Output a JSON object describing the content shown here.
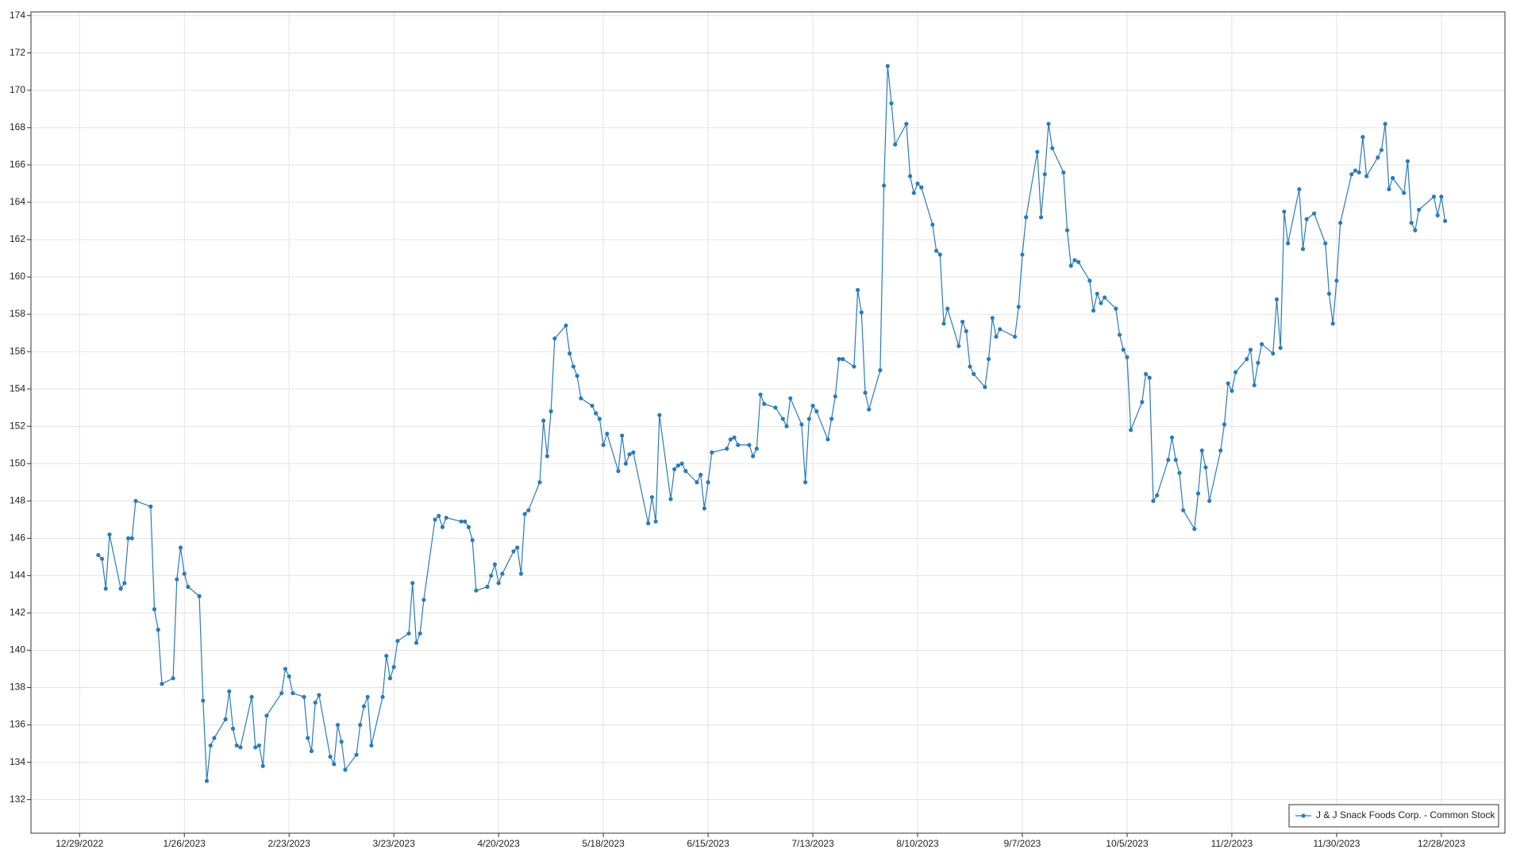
{
  "chart_data": {
    "type": "line",
    "x": [
      "1/3/2023",
      "1/4/2023",
      "1/5/2023",
      "1/6/2023",
      "1/9/2023",
      "1/10/2023",
      "1/11/2023",
      "1/12/2023",
      "1/13/2023",
      "1/17/2023",
      "1/18/2023",
      "1/19/2023",
      "1/20/2023",
      "1/23/2023",
      "1/24/2023",
      "1/25/2023",
      "1/26/2023",
      "1/27/2023",
      "1/30/2023",
      "1/31/2023",
      "2/1/2023",
      "2/2/2023",
      "2/3/2023",
      "2/6/2023",
      "2/7/2023",
      "2/8/2023",
      "2/9/2023",
      "2/10/2023",
      "2/13/2023",
      "2/14/2023",
      "2/15/2023",
      "2/16/2023",
      "2/17/2023",
      "2/21/2023",
      "2/22/2023",
      "2/23/2023",
      "2/24/2023",
      "2/27/2023",
      "2/28/2023",
      "3/1/2023",
      "3/2/2023",
      "3/3/2023",
      "3/6/2023",
      "3/7/2023",
      "3/8/2023",
      "3/9/2023",
      "3/10/2023",
      "3/13/2023",
      "3/14/2023",
      "3/15/2023",
      "3/16/2023",
      "3/17/2023",
      "3/20/2023",
      "3/21/2023",
      "3/22/2023",
      "3/23/2023",
      "3/24/2023",
      "3/27/2023",
      "3/28/2023",
      "3/29/2023",
      "3/30/2023",
      "3/31/2023",
      "4/3/2023",
      "4/4/2023",
      "4/5/2023",
      "4/6/2023",
      "4/10/2023",
      "4/11/2023",
      "4/12/2023",
      "4/13/2023",
      "4/14/2023",
      "4/17/2023",
      "4/18/2023",
      "4/19/2023",
      "4/20/2023",
      "4/21/2023",
      "4/24/2023",
      "4/25/2023",
      "4/26/2023",
      "4/27/2023",
      "4/28/2023",
      "5/1/2023",
      "5/2/2023",
      "5/3/2023",
      "5/4/2023",
      "5/5/2023",
      "5/8/2023",
      "5/9/2023",
      "5/10/2023",
      "5/11/2023",
      "5/12/2023",
      "5/15/2023",
      "5/16/2023",
      "5/17/2023",
      "5/18/2023",
      "5/19/2023",
      "5/22/2023",
      "5/23/2023",
      "5/24/2023",
      "5/25/2023",
      "5/26/2023",
      "5/30/2023",
      "5/31/2023",
      "6/1/2023",
      "6/2/2023",
      "6/5/2023",
      "6/6/2023",
      "6/7/2023",
      "6/8/2023",
      "6/9/2023",
      "6/12/2023",
      "6/13/2023",
      "6/14/2023",
      "6/15/2023",
      "6/16/2023",
      "6/20/2023",
      "6/21/2023",
      "6/22/2023",
      "6/23/2023",
      "6/26/2023",
      "6/27/2023",
      "6/28/2023",
      "6/29/2023",
      "6/30/2023",
      "7/3/2023",
      "7/5/2023",
      "7/6/2023",
      "7/7/2023",
      "7/10/2023",
      "7/11/2023",
      "7/12/2023",
      "7/13/2023",
      "7/14/2023",
      "7/17/2023",
      "7/18/2023",
      "7/19/2023",
      "7/20/2023",
      "7/21/2023",
      "7/24/2023",
      "7/25/2023",
      "7/26/2023",
      "7/27/2023",
      "7/28/2023",
      "7/31/2023",
      "8/1/2023",
      "8/2/2023",
      "8/3/2023",
      "8/4/2023",
      "8/7/2023",
      "8/8/2023",
      "8/9/2023",
      "8/10/2023",
      "8/11/2023",
      "8/14/2023",
      "8/15/2023",
      "8/16/2023",
      "8/17/2023",
      "8/18/2023",
      "8/21/2023",
      "8/22/2023",
      "8/23/2023",
      "8/24/2023",
      "8/25/2023",
      "8/28/2023",
      "8/29/2023",
      "8/30/2023",
      "8/31/2023",
      "9/1/2023",
      "9/5/2023",
      "9/6/2023",
      "9/7/2023",
      "9/8/2023",
      "9/11/2023",
      "9/12/2023",
      "9/13/2023",
      "9/14/2023",
      "9/15/2023",
      "9/18/2023",
      "9/19/2023",
      "9/20/2023",
      "9/21/2023",
      "9/22/2023",
      "9/25/2023",
      "9/26/2023",
      "9/27/2023",
      "9/28/2023",
      "9/29/2023",
      "10/2/2023",
      "10/3/2023",
      "10/4/2023",
      "10/5/2023",
      "10/6/2023",
      "10/9/2023",
      "10/10/2023",
      "10/11/2023",
      "10/12/2023",
      "10/13/2023",
      "10/16/2023",
      "10/17/2023",
      "10/18/2023",
      "10/19/2023",
      "10/20/2023",
      "10/23/2023",
      "10/24/2023",
      "10/25/2023",
      "10/26/2023",
      "10/27/2023",
      "10/30/2023",
      "10/31/2023",
      "11/1/2023",
      "11/2/2023",
      "11/3/2023",
      "11/6/2023",
      "11/7/2023",
      "11/8/2023",
      "11/9/2023",
      "11/10/2023",
      "11/13/2023",
      "11/14/2023",
      "11/15/2023",
      "11/16/2023",
      "11/17/2023",
      "11/20/2023",
      "11/21/2023",
      "11/22/2023",
      "11/24/2023",
      "11/27/2023",
      "11/28/2023",
      "11/29/2023",
      "11/30/2023",
      "12/1/2023",
      "12/4/2023",
      "12/5/2023",
      "12/6/2023",
      "12/7/2023",
      "12/8/2023",
      "12/11/2023",
      "12/12/2023",
      "12/13/2023",
      "12/14/2023",
      "12/15/2023",
      "12/18/2023",
      "12/19/2023",
      "12/20/2023",
      "12/21/2023",
      "12/22/2023",
      "12/26/2023",
      "12/27/2023",
      "12/28/2023",
      "12/29/2023"
    ],
    "series": [
      {
        "name": "J & J Snack Foods Corp. - Common Stock",
        "color": "#2b7bb9",
        "values": [
          145.1,
          144.9,
          143.3,
          146.2,
          143.3,
          143.6,
          146.0,
          146.0,
          148.0,
          147.7,
          142.2,
          141.1,
          138.2,
          138.5,
          143.8,
          145.5,
          144.1,
          143.4,
          142.9,
          137.3,
          133.0,
          134.9,
          135.3,
          136.3,
          137.8,
          135.8,
          134.9,
          134.8,
          137.5,
          134.8,
          134.9,
          133.8,
          136.5,
          137.7,
          139.0,
          138.6,
          137.7,
          137.5,
          135.3,
          134.6,
          137.2,
          137.6,
          134.3,
          133.9,
          136.0,
          135.1,
          133.6,
          134.4,
          136.0,
          137.0,
          137.5,
          134.9,
          137.5,
          139.7,
          138.5,
          139.1,
          140.5,
          140.9,
          143.6,
          140.4,
          140.9,
          142.7,
          147.0,
          147.2,
          146.6,
          147.1,
          146.9,
          146.9,
          146.6,
          145.9,
          143.2,
          143.4,
          144.0,
          144.6,
          143.6,
          144.1,
          145.3,
          145.5,
          144.1,
          147.3,
          147.5,
          149.0,
          152.3,
          150.4,
          152.8,
          156.7,
          157.4,
          155.9,
          155.2,
          154.7,
          153.5,
          153.1,
          152.7,
          152.4,
          151.0,
          151.6,
          149.6,
          151.5,
          150.0,
          150.5,
          150.6,
          146.8,
          148.2,
          146.9,
          152.6,
          148.1,
          149.7,
          149.9,
          150.0,
          149.6,
          149.0,
          149.4,
          147.6,
          149.0,
          150.6,
          150.8,
          151.3,
          151.4,
          151.0,
          151.0,
          150.4,
          150.8,
          153.7,
          153.2,
          153.0,
          152.4,
          152.0,
          153.5,
          152.1,
          149.0,
          152.4,
          153.1,
          152.8,
          151.3,
          152.4,
          153.6,
          155.6,
          155.6,
          155.2,
          159.3,
          158.1,
          153.8,
          152.9,
          155.0,
          164.9,
          171.3,
          169.3,
          167.1,
          168.2,
          165.4,
          164.5,
          165.0,
          164.8,
          162.8,
          161.4,
          161.2,
          157.5,
          158.3,
          156.3,
          157.6,
          157.1,
          155.2,
          154.8,
          154.1,
          155.6,
          157.8,
          156.8,
          157.2,
          156.8,
          158.4,
          161.2,
          163.2,
          166.7,
          163.2,
          165.5,
          168.2,
          166.9,
          165.6,
          162.5,
          160.6,
          160.9,
          160.8,
          159.8,
          158.2,
          159.1,
          158.6,
          158.9,
          158.3,
          156.9,
          156.1,
          155.7,
          151.8,
          153.3,
          154.8,
          154.6,
          148.0,
          148.3,
          150.2,
          151.4,
          150.2,
          149.5,
          147.5,
          146.5,
          148.4,
          150.7,
          149.8,
          148.0,
          150.7,
          152.1,
          154.3,
          153.9,
          154.9,
          155.6,
          156.1,
          154.2,
          155.4,
          156.4,
          155.9,
          158.8,
          156.2,
          163.5,
          161.8,
          164.7,
          161.5,
          163.1,
          163.4,
          161.8,
          159.1,
          157.5,
          159.8,
          162.9,
          165.5,
          165.7,
          165.6,
          167.5,
          165.4,
          166.4,
          166.8,
          168.2,
          164.7,
          165.3,
          164.5,
          166.2,
          162.9,
          162.5,
          163.6,
          164.3,
          163.3,
          164.3,
          163.0
        ]
      }
    ],
    "xlim": [
      "12/16/2022",
      "1/14/2024"
    ],
    "xticks": [
      "12/29/2022",
      "1/26/2023",
      "2/23/2023",
      "3/23/2023",
      "4/20/2023",
      "5/18/2023",
      "6/15/2023",
      "7/13/2023",
      "8/10/2023",
      "9/7/2023",
      "10/5/2023",
      "11/2/2023",
      "11/30/2023",
      "12/28/2023"
    ],
    "ylim": [
      130.2,
      174.2
    ],
    "yticks": [
      132,
      134,
      136,
      138,
      140,
      142,
      144,
      146,
      148,
      150,
      152,
      154,
      156,
      158,
      160,
      162,
      164,
      166,
      168,
      170,
      172,
      174
    ],
    "grid": true,
    "markers": true,
    "legend": "bottom-right"
  }
}
